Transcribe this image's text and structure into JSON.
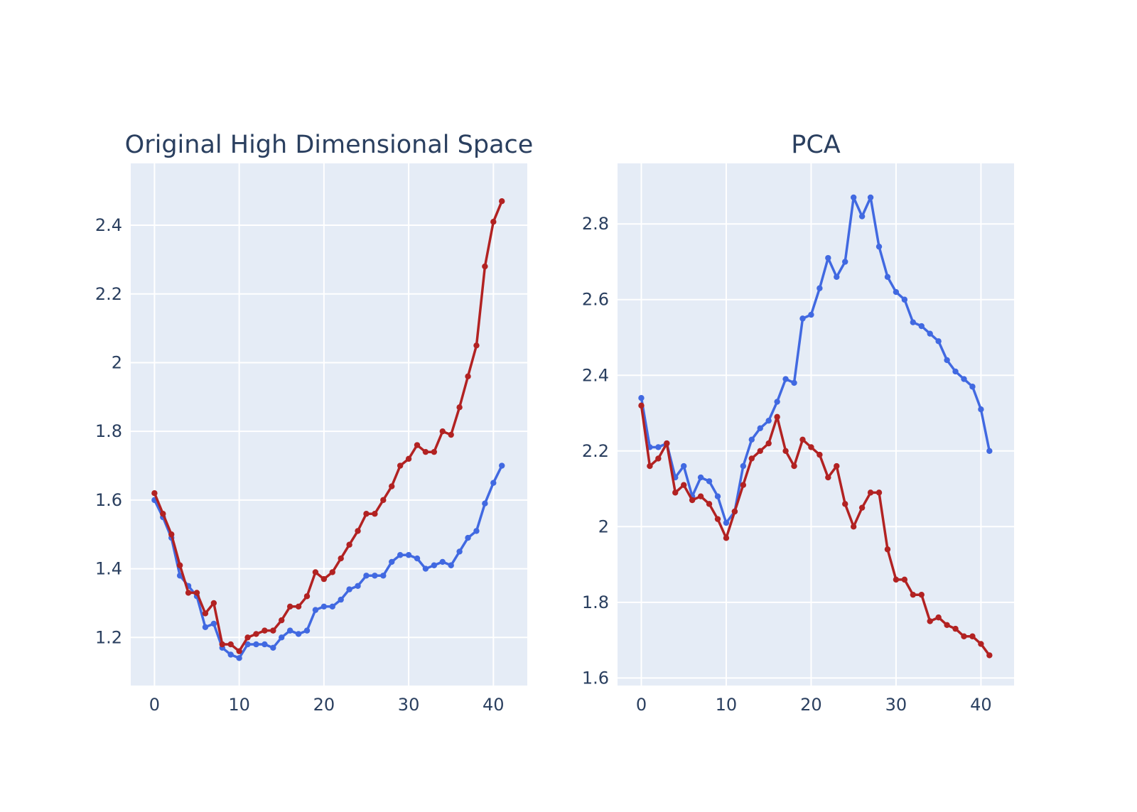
{
  "colors": {
    "plot_bg": "#e5ecf6",
    "grid": "#ffffff",
    "text": "#2a3f5f",
    "blue": "#4169e1",
    "red": "#b22222"
  },
  "chart_data": [
    {
      "type": "line",
      "title": "Original High Dimensional Space",
      "xlabel": "",
      "ylabel": "",
      "xlim": [
        -2.8,
        44.0
      ],
      "ylim": [
        1.06,
        2.58
      ],
      "xticks": [
        0,
        10,
        20,
        30,
        40
      ],
      "xtick_labels": [
        "0",
        "10",
        "20",
        "30",
        "40"
      ],
      "yticks": [
        1.2,
        1.4,
        1.6,
        1.8,
        2.0,
        2.2,
        2.4
      ],
      "ytick_labels": [
        "1.2",
        "1.4",
        "1.6",
        "1.8",
        "2",
        "2.2",
        "2.4"
      ],
      "grid": true,
      "x": [
        0,
        1,
        2,
        3,
        4,
        5,
        6,
        7,
        8,
        9,
        10,
        11,
        12,
        13,
        14,
        15,
        16,
        17,
        18,
        19,
        20,
        21,
        22,
        23,
        24,
        25,
        26,
        27,
        28,
        29,
        30,
        31,
        32,
        33,
        34,
        35,
        36,
        37,
        38,
        39,
        40,
        41
      ],
      "series": [
        {
          "color": "#4169e1",
          "values": [
            1.6,
            1.55,
            1.49,
            1.38,
            1.35,
            1.32,
            1.23,
            1.24,
            1.17,
            1.15,
            1.14,
            1.18,
            1.18,
            1.18,
            1.17,
            1.2,
            1.22,
            1.21,
            1.22,
            1.28,
            1.29,
            1.29,
            1.31,
            1.34,
            1.35,
            1.38,
            1.38,
            1.38,
            1.42,
            1.44,
            1.44,
            1.43,
            1.4,
            1.41,
            1.42,
            1.41,
            1.45,
            1.49,
            1.51,
            1.59,
            1.65,
            1.7
          ]
        },
        {
          "color": "#b22222",
          "values": [
            1.62,
            1.56,
            1.5,
            1.41,
            1.33,
            1.33,
            1.27,
            1.3,
            1.18,
            1.18,
            1.16,
            1.2,
            1.21,
            1.22,
            1.22,
            1.25,
            1.29,
            1.29,
            1.32,
            1.39,
            1.37,
            1.39,
            1.43,
            1.47,
            1.51,
            1.56,
            1.56,
            1.6,
            1.64,
            1.7,
            1.72,
            1.76,
            1.74,
            1.74,
            1.8,
            1.79,
            1.87,
            1.96,
            2.05,
            2.28,
            2.41,
            2.47
          ]
        }
      ]
    },
    {
      "type": "line",
      "title": "PCA",
      "xlabel": "",
      "ylabel": "",
      "xlim": [
        -2.8,
        43.9
      ],
      "ylim": [
        1.58,
        2.96
      ],
      "xticks": [
        0,
        10,
        20,
        30,
        40
      ],
      "xtick_labels": [
        "0",
        "10",
        "20",
        "30",
        "40"
      ],
      "yticks": [
        1.6,
        1.8,
        2.0,
        2.2,
        2.4,
        2.6,
        2.8
      ],
      "ytick_labels": [
        "1.6",
        "1.8",
        "2",
        "2.2",
        "2.4",
        "2.6",
        "2.8"
      ],
      "grid": true,
      "x": [
        0,
        1,
        2,
        3,
        4,
        5,
        6,
        7,
        8,
        9,
        10,
        11,
        12,
        13,
        14,
        15,
        16,
        17,
        18,
        19,
        20,
        21,
        22,
        23,
        24,
        25,
        26,
        27,
        28,
        29,
        30,
        31,
        32,
        33,
        34,
        35,
        36,
        37,
        38,
        39,
        40,
        41
      ],
      "series": [
        {
          "color": "#4169e1",
          "values": [
            2.34,
            2.21,
            2.21,
            2.22,
            2.13,
            2.16,
            2.08,
            2.13,
            2.12,
            2.08,
            2.01,
            2.04,
            2.16,
            2.23,
            2.26,
            2.28,
            2.33,
            2.39,
            2.38,
            2.55,
            2.56,
            2.63,
            2.71,
            2.66,
            2.7,
            2.87,
            2.82,
            2.87,
            2.74,
            2.66,
            2.62,
            2.6,
            2.54,
            2.53,
            2.51,
            2.49,
            2.44,
            2.41,
            2.39,
            2.37,
            2.31,
            2.2
          ]
        },
        {
          "color": "#b22222",
          "values": [
            2.32,
            2.16,
            2.18,
            2.22,
            2.09,
            2.11,
            2.07,
            2.08,
            2.06,
            2.02,
            1.97,
            2.04,
            2.11,
            2.18,
            2.2,
            2.22,
            2.29,
            2.2,
            2.16,
            2.23,
            2.21,
            2.19,
            2.13,
            2.16,
            2.06,
            2.0,
            2.05,
            2.09,
            2.09,
            1.94,
            1.86,
            1.86,
            1.82,
            1.82,
            1.75,
            1.76,
            1.74,
            1.73,
            1.71,
            1.71,
            1.69,
            1.66
          ]
        }
      ]
    }
  ]
}
